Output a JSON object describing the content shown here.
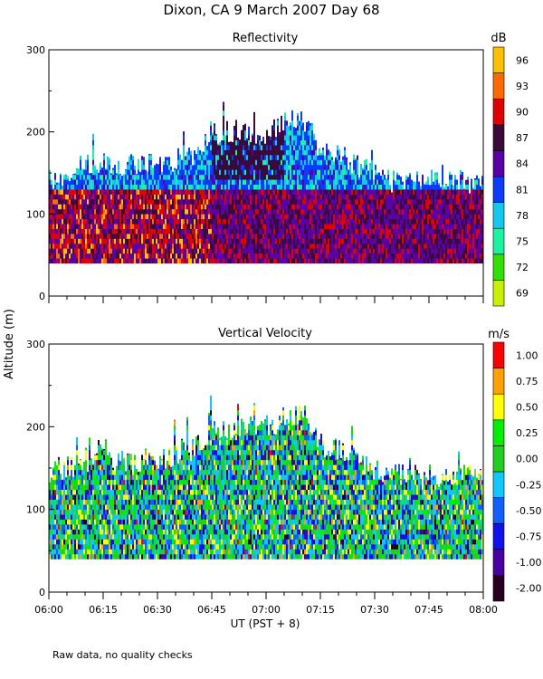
{
  "figure": {
    "title": "Dixon, CA  9 March 2007  Day  68",
    "ylabel": "Altitude (m)",
    "xlabel": "UT  (PST + 8)",
    "footnote": "Raw data, no quality checks"
  },
  "colors": {
    "reflectivity_scale": [
      "#c8f000",
      "#31e100",
      "#18f4a0",
      "#12c8f0",
      "#0a3cff",
      "#5a00a8",
      "#3a0a3a",
      "#e00000",
      "#ff6a00",
      "#ffc000"
    ],
    "velocity_scale": [
      "#2a0020",
      "#4a00a0",
      "#1010f0",
      "#1060ff",
      "#10c8ff",
      "#20d020",
      "#00f000",
      "#ffff00",
      "#ffa000",
      "#ff0000"
    ]
  },
  "chart_data": [
    {
      "type": "heatmap",
      "title": "Reflectivity",
      "unit": "dB",
      "x_ticks": [
        "06:00",
        "06:15",
        "06:30",
        "06:45",
        "07:00",
        "07:15",
        "07:30",
        "07:45",
        "08:00"
      ],
      "xlim": [
        "06:00",
        "08:00"
      ],
      "ylim": [
        0,
        300
      ],
      "y_ticks": [
        "0",
        "100",
        "200",
        "300"
      ],
      "colorbar_labels": [
        "69",
        "72",
        "75",
        "78",
        "81",
        "84",
        "87",
        "90",
        "93",
        "96"
      ],
      "data_range_m": [
        40,
        240
      ],
      "echo_top_m": [
        {
          "time": "06:00",
          "top": 140
        },
        {
          "time": "06:10",
          "top": 160
        },
        {
          "time": "06:20",
          "top": 160
        },
        {
          "time": "06:30",
          "top": 160
        },
        {
          "time": "06:40",
          "top": 170
        },
        {
          "time": "06:45",
          "top": 200
        },
        {
          "time": "07:00",
          "top": 200
        },
        {
          "time": "07:10",
          "top": 220
        },
        {
          "time": "07:15",
          "top": 180
        },
        {
          "time": "07:25",
          "top": 160
        },
        {
          "time": "07:35",
          "top": 140
        },
        {
          "time": "07:50",
          "top": 140
        },
        {
          "time": "08:00",
          "top": 140
        }
      ],
      "core_layer_m": [
        40,
        130
      ]
    },
    {
      "type": "heatmap",
      "title": "Vertical Velocity",
      "unit": "m/s",
      "x_ticks": [
        "06:00",
        "06:15",
        "06:30",
        "06:45",
        "07:00",
        "07:15",
        "07:30",
        "07:45",
        "08:00"
      ],
      "xlim": [
        "06:00",
        "08:00"
      ],
      "ylim": [
        0,
        300
      ],
      "y_ticks": [
        "0",
        "100",
        "200",
        "300"
      ],
      "colorbar_labels": [
        "-2.00",
        "-1.00",
        "-0.75",
        "-0.50",
        "-0.25",
        "0.00",
        "0.25",
        "0.50",
        "0.75",
        "1.00"
      ],
      "data_range_m": [
        40,
        240
      ]
    }
  ]
}
